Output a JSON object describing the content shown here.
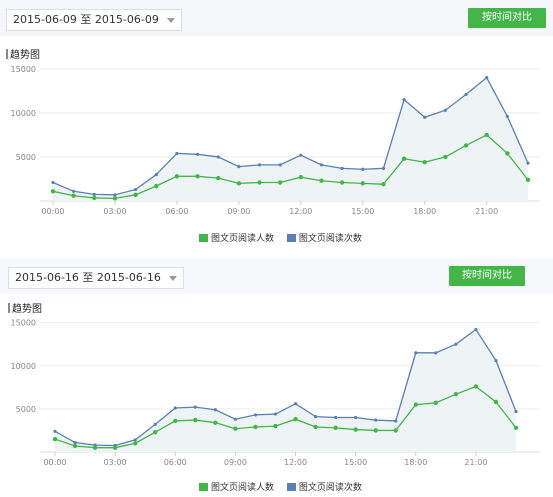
{
  "colors": {
    "green": "#44b549",
    "blue": "#5b7fb4",
    "area": "#eef4f6",
    "grid": "#eeeeee",
    "button": "#44b549"
  },
  "panels": [
    {
      "date_range": "2015-06-09 至 2015-06-09",
      "button_label": "按时间对比",
      "section_title": "趋势图"
    },
    {
      "date_range": "2015-06-16 至 2015-06-16",
      "button_label": "按时间对比",
      "section_title": "趋势图"
    }
  ],
  "chart_data": [
    {
      "type": "line",
      "x": [
        "00:00",
        "01:00",
        "02:00",
        "03:00",
        "04:00",
        "05:00",
        "06:00",
        "07:00",
        "08:00",
        "09:00",
        "10:00",
        "11:00",
        "12:00",
        "13:00",
        "14:00",
        "15:00",
        "16:00",
        "17:00",
        "18:00",
        "19:00",
        "20:00",
        "21:00",
        "22:00",
        "23:00"
      ],
      "xticks": [
        "00:00",
        "03:00",
        "06:00",
        "09:00",
        "12:00",
        "15:00",
        "18:00",
        "21:00"
      ],
      "yticks": [
        5000,
        10000,
        15000
      ],
      "ylim": [
        0,
        16000
      ],
      "legend": [
        "图文页阅读人数",
        "图文页阅读次数"
      ],
      "series": [
        {
          "name": "图文页阅读人数",
          "color": "#44b549",
          "values": [
            1100,
            600,
            350,
            300,
            700,
            1700,
            2800,
            2800,
            2600,
            2000,
            2100,
            2100,
            2700,
            2300,
            2100,
            2000,
            1900,
            4800,
            4400,
            5000,
            6300,
            7500,
            5400,
            2400
          ]
        },
        {
          "name": "图文页阅读次数",
          "color": "#5b7fb4",
          "values": [
            2100,
            1100,
            750,
            700,
            1300,
            3000,
            5400,
            5300,
            5000,
            3900,
            4100,
            4100,
            5200,
            4100,
            3700,
            3600,
            3700,
            11500,
            9500,
            10300,
            12100,
            14000,
            9600,
            4300
          ]
        }
      ]
    },
    {
      "type": "line",
      "x": [
        "00:00",
        "01:00",
        "02:00",
        "03:00",
        "04:00",
        "05:00",
        "06:00",
        "07:00",
        "08:00",
        "09:00",
        "10:00",
        "11:00",
        "12:00",
        "13:00",
        "14:00",
        "15:00",
        "16:00",
        "17:00",
        "18:00",
        "19:00",
        "20:00",
        "21:00",
        "22:00",
        "23:00"
      ],
      "xticks": [
        "00:00",
        "03:00",
        "06:00",
        "09:00",
        "12:00",
        "15:00",
        "18:00",
        "21:00"
      ],
      "yticks": [
        5000,
        10000,
        15000
      ],
      "ylim": [
        0,
        16000
      ],
      "legend": [
        "图文页阅读人数",
        "图文页阅读次数"
      ],
      "series": [
        {
          "name": "图文页阅读人数",
          "color": "#44b549",
          "values": [
            1500,
            700,
            500,
            500,
            1000,
            2300,
            3600,
            3700,
            3400,
            2700,
            2900,
            3000,
            3800,
            2900,
            2800,
            2600,
            2500,
            2500,
            5500,
            5700,
            6700,
            7600,
            5800,
            2800
          ]
        },
        {
          "name": "图文页阅读次数",
          "color": "#5b7fb4",
          "values": [
            2400,
            1100,
            800,
            750,
            1400,
            3200,
            5100,
            5200,
            4900,
            3800,
            4300,
            4400,
            5600,
            4100,
            4000,
            4000,
            3700,
            3600,
            11500,
            11500,
            12500,
            14200,
            10600,
            4700
          ]
        }
      ]
    }
  ]
}
